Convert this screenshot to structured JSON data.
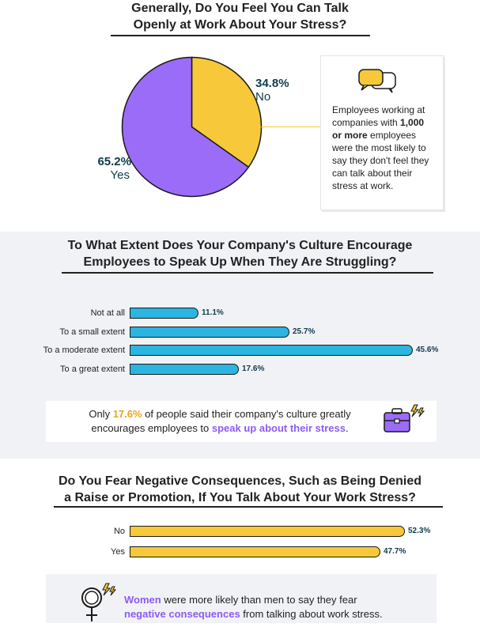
{
  "section1": {
    "title_line1": "Generally, Do You Feel You Can Talk",
    "title_line2": "Openly at Work About Your Stress?",
    "callout_part1": "Employees working at companies with ",
    "callout_bold": "1,000 or more",
    "callout_part2": " employees were the most likely to say they don't feel they can talk about their stress at work.",
    "callout_icon": "speech-bubbles-icon"
  },
  "section2": {
    "title_line1": "To What Extent Does Your Company's Culture Encourage",
    "title_line2": "Employees to Speak Up When They Are Struggling?",
    "note_part1": "Only ",
    "note_hl1": "17.6%",
    "note_part2": " of people said their company's culture greatly encourages employees to ",
    "note_hl2": "speak up about their stress",
    "note_part3": ".",
    "note_icon": "briefcase-lightning-icon"
  },
  "section3": {
    "title_line1": "Do You Fear Negative Consequences, Such as Being Denied",
    "title_line2": "a Raise or Promotion, If You Talk About Your Work Stress?",
    "note_hl1": "Women",
    "note_part1": " were more likely than men to say they fear",
    "note_hl2": "negative consequences",
    "note_part2": " from talking about work stress.",
    "note_icon": "female-symbol-lightning-icon"
  },
  "colors": {
    "yellow": "#f7c93a",
    "purple": "#9b6cf7",
    "blue": "#2bb5e0",
    "dark_teal": "#0e3c4a"
  },
  "chart_data": [
    {
      "type": "pie",
      "title": "Generally, Do You Feel You Can Talk Openly at Work About Your Stress?",
      "slices": [
        {
          "label": "No",
          "value": 34.8,
          "display": "34.8%",
          "color": "#f7c93a"
        },
        {
          "label": "Yes",
          "value": 65.2,
          "display": "65.2%",
          "color": "#9b6cf7"
        }
      ]
    },
    {
      "type": "bar",
      "orientation": "horizontal",
      "title": "To What Extent Does Your Company's Culture Encourage Employees to Speak Up When They Are Struggling?",
      "categories": [
        "Not at all",
        "To a small extent",
        "To a moderate extent",
        "To a great extent"
      ],
      "values": [
        11.1,
        25.7,
        45.6,
        17.6
      ],
      "labels": [
        "11.1%",
        "25.7%",
        "45.6%",
        "17.6%"
      ],
      "color": "#2bb5e0"
    },
    {
      "type": "bar",
      "orientation": "horizontal",
      "title": "Do You Fear Negative Consequences, Such as Being Denied a Raise or Promotion, If You Talk About Your Work Stress?",
      "categories": [
        "No",
        "Yes"
      ],
      "values": [
        52.3,
        47.7
      ],
      "labels": [
        "52.3%",
        "47.7%"
      ],
      "color": "#f7c93a"
    }
  ]
}
